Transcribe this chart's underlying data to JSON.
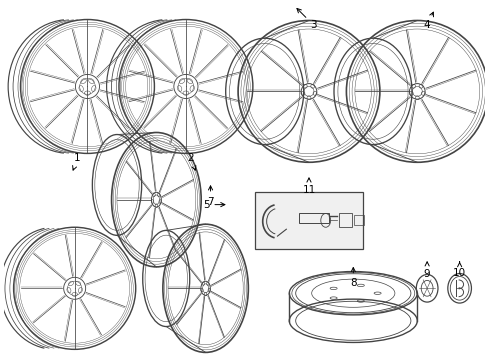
{
  "background_color": "#ffffff",
  "line_color": "#444444",
  "label_color": "#000000",
  "fig_width": 4.89,
  "fig_height": 3.6,
  "dpi": 100
}
